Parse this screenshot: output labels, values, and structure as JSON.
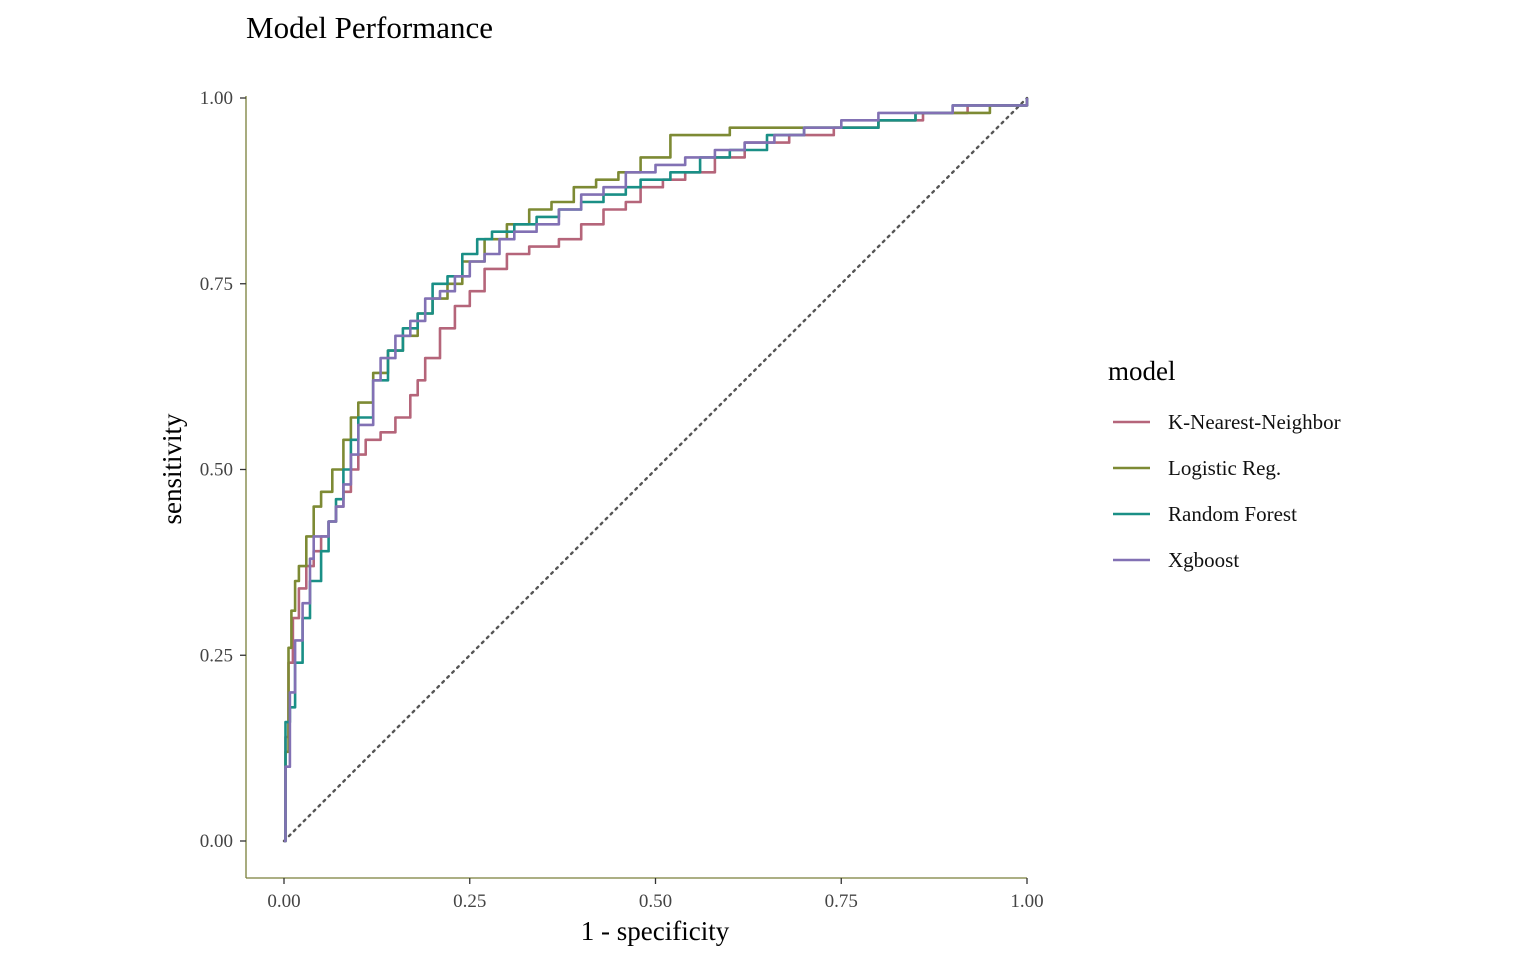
{
  "chart_data": {
    "type": "line",
    "title": "Model Performance",
    "xlabel": "1 - specificity",
    "ylabel": "sensitivity",
    "xlim": [
      0,
      1
    ],
    "ylim": [
      0,
      1
    ],
    "x_ticks": [
      "0.00",
      "0.25",
      "0.50",
      "0.75",
      "1.00"
    ],
    "y_ticks": [
      "0.00",
      "0.25",
      "0.50",
      "0.75",
      "1.00"
    ],
    "grid": false,
    "legend": {
      "title": "model",
      "position": "right"
    },
    "axis_color": "#7a7f3a",
    "reference_line": {
      "style": "dotted",
      "color": "#555555",
      "points": [
        [
          0,
          0
        ],
        [
          1,
          1
        ]
      ]
    },
    "series": [
      {
        "name": "K-Nearest-Neighbor",
        "color": "#b5657a",
        "points": [
          [
            0,
            0
          ],
          [
            0.002,
            0.14
          ],
          [
            0.006,
            0.24
          ],
          [
            0.012,
            0.3
          ],
          [
            0.02,
            0.34
          ],
          [
            0.03,
            0.37
          ],
          [
            0.04,
            0.39
          ],
          [
            0.05,
            0.41
          ],
          [
            0.06,
            0.43
          ],
          [
            0.07,
            0.45
          ],
          [
            0.08,
            0.47
          ],
          [
            0.09,
            0.5
          ],
          [
            0.1,
            0.52
          ],
          [
            0.11,
            0.54
          ],
          [
            0.13,
            0.55
          ],
          [
            0.15,
            0.57
          ],
          [
            0.17,
            0.6
          ],
          [
            0.18,
            0.62
          ],
          [
            0.19,
            0.65
          ],
          [
            0.21,
            0.69
          ],
          [
            0.23,
            0.72
          ],
          [
            0.25,
            0.74
          ],
          [
            0.27,
            0.77
          ],
          [
            0.3,
            0.79
          ],
          [
            0.33,
            0.8
          ],
          [
            0.37,
            0.81
          ],
          [
            0.4,
            0.83
          ],
          [
            0.43,
            0.85
          ],
          [
            0.46,
            0.86
          ],
          [
            0.48,
            0.88
          ],
          [
            0.51,
            0.89
          ],
          [
            0.54,
            0.9
          ],
          [
            0.58,
            0.92
          ],
          [
            0.62,
            0.94
          ],
          [
            0.68,
            0.95
          ],
          [
            0.74,
            0.96
          ],
          [
            0.8,
            0.97
          ],
          [
            0.86,
            0.98
          ],
          [
            0.92,
            0.99
          ],
          [
            1,
            1
          ]
        ]
      },
      {
        "name": "Logistic Reg.",
        "color": "#7d8a34",
        "points": [
          [
            0,
            0
          ],
          [
            0.002,
            0.12
          ],
          [
            0.006,
            0.26
          ],
          [
            0.01,
            0.31
          ],
          [
            0.015,
            0.35
          ],
          [
            0.02,
            0.37
          ],
          [
            0.03,
            0.41
          ],
          [
            0.04,
            0.45
          ],
          [
            0.05,
            0.47
          ],
          [
            0.065,
            0.5
          ],
          [
            0.08,
            0.54
          ],
          [
            0.09,
            0.57
          ],
          [
            0.1,
            0.59
          ],
          [
            0.12,
            0.63
          ],
          [
            0.14,
            0.66
          ],
          [
            0.16,
            0.68
          ],
          [
            0.18,
            0.71
          ],
          [
            0.2,
            0.73
          ],
          [
            0.22,
            0.75
          ],
          [
            0.24,
            0.78
          ],
          [
            0.27,
            0.81
          ],
          [
            0.3,
            0.83
          ],
          [
            0.33,
            0.85
          ],
          [
            0.36,
            0.86
          ],
          [
            0.39,
            0.88
          ],
          [
            0.42,
            0.89
          ],
          [
            0.45,
            0.9
          ],
          [
            0.48,
            0.92
          ],
          [
            0.52,
            0.95
          ],
          [
            0.56,
            0.95
          ],
          [
            0.6,
            0.96
          ],
          [
            0.65,
            0.96
          ],
          [
            0.7,
            0.96
          ],
          [
            0.75,
            0.96
          ],
          [
            0.8,
            0.97
          ],
          [
            0.85,
            0.98
          ],
          [
            0.9,
            0.98
          ],
          [
            0.95,
            0.99
          ],
          [
            1,
            1
          ]
        ]
      },
      {
        "name": "Random Forest",
        "color": "#1a8f86",
        "points": [
          [
            0,
            0
          ],
          [
            0.002,
            0.16
          ],
          [
            0.008,
            0.18
          ],
          [
            0.015,
            0.24
          ],
          [
            0.025,
            0.3
          ],
          [
            0.035,
            0.35
          ],
          [
            0.05,
            0.39
          ],
          [
            0.06,
            0.43
          ],
          [
            0.07,
            0.46
          ],
          [
            0.08,
            0.5
          ],
          [
            0.09,
            0.54
          ],
          [
            0.1,
            0.57
          ],
          [
            0.12,
            0.62
          ],
          [
            0.14,
            0.66
          ],
          [
            0.16,
            0.69
          ],
          [
            0.18,
            0.71
          ],
          [
            0.2,
            0.75
          ],
          [
            0.22,
            0.76
          ],
          [
            0.24,
            0.79
          ],
          [
            0.26,
            0.81
          ],
          [
            0.28,
            0.82
          ],
          [
            0.31,
            0.83
          ],
          [
            0.34,
            0.84
          ],
          [
            0.37,
            0.85
          ],
          [
            0.4,
            0.86
          ],
          [
            0.43,
            0.87
          ],
          [
            0.46,
            0.88
          ],
          [
            0.48,
            0.89
          ],
          [
            0.52,
            0.9
          ],
          [
            0.56,
            0.92
          ],
          [
            0.6,
            0.93
          ],
          [
            0.65,
            0.95
          ],
          [
            0.7,
            0.96
          ],
          [
            0.75,
            0.96
          ],
          [
            0.8,
            0.97
          ],
          [
            0.85,
            0.98
          ],
          [
            0.9,
            0.99
          ],
          [
            0.95,
            0.99
          ],
          [
            1,
            1
          ]
        ]
      },
      {
        "name": "Xgboost",
        "color": "#8271b4",
        "points": [
          [
            0,
            0
          ],
          [
            0.002,
            0.1
          ],
          [
            0.008,
            0.2
          ],
          [
            0.015,
            0.27
          ],
          [
            0.025,
            0.32
          ],
          [
            0.035,
            0.38
          ],
          [
            0.04,
            0.41
          ],
          [
            0.05,
            0.41
          ],
          [
            0.06,
            0.43
          ],
          [
            0.07,
            0.45
          ],
          [
            0.08,
            0.48
          ],
          [
            0.09,
            0.52
          ],
          [
            0.1,
            0.56
          ],
          [
            0.12,
            0.62
          ],
          [
            0.13,
            0.65
          ],
          [
            0.15,
            0.68
          ],
          [
            0.17,
            0.7
          ],
          [
            0.19,
            0.73
          ],
          [
            0.21,
            0.74
          ],
          [
            0.23,
            0.76
          ],
          [
            0.25,
            0.78
          ],
          [
            0.27,
            0.79
          ],
          [
            0.29,
            0.81
          ],
          [
            0.31,
            0.82
          ],
          [
            0.34,
            0.83
          ],
          [
            0.37,
            0.85
          ],
          [
            0.4,
            0.87
          ],
          [
            0.43,
            0.88
          ],
          [
            0.46,
            0.9
          ],
          [
            0.5,
            0.91
          ],
          [
            0.54,
            0.92
          ],
          [
            0.58,
            0.93
          ],
          [
            0.62,
            0.94
          ],
          [
            0.66,
            0.95
          ],
          [
            0.7,
            0.96
          ],
          [
            0.75,
            0.97
          ],
          [
            0.8,
            0.98
          ],
          [
            0.85,
            0.98
          ],
          [
            0.9,
            0.99
          ],
          [
            0.95,
            0.99
          ],
          [
            1,
            1
          ]
        ]
      }
    ]
  }
}
